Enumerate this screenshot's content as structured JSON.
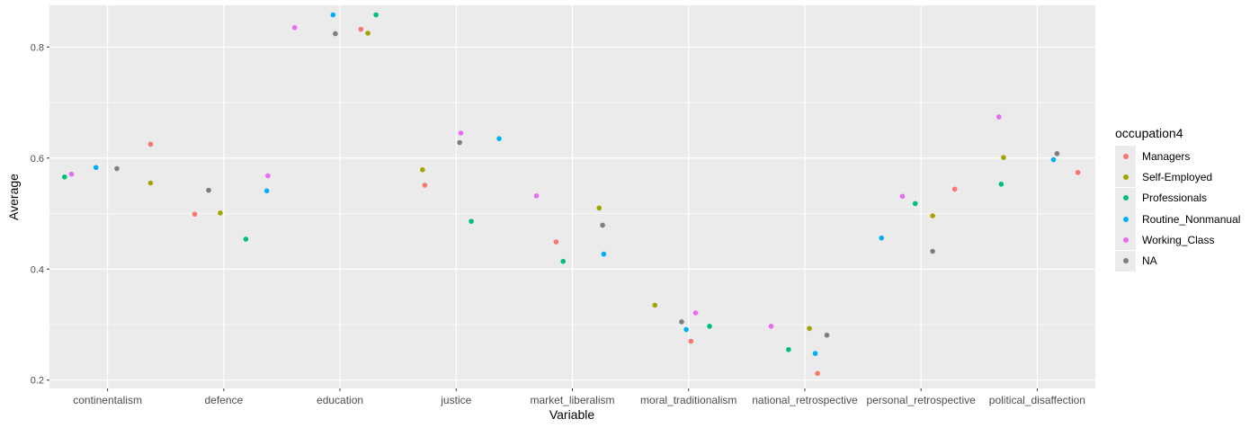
{
  "chart_data": {
    "type": "scatter",
    "title": "",
    "xlabel": "Variable",
    "ylabel": "Average",
    "ylim": [
      0.185,
      0.875
    ],
    "yticks": [
      "0.2",
      "0.4",
      "0.6",
      "0.8"
    ],
    "grid": true,
    "legend_position": "right",
    "legend_title": "occupation4",
    "categories": [
      "continentalism",
      "defence",
      "education",
      "justice",
      "market_liberalism",
      "moral_traditionalism",
      "national_retrospective",
      "personal_retrospective",
      "political_disaffection"
    ],
    "series": [
      {
        "name": "Managers",
        "color": "#F8766D",
        "points": [
          {
            "category": "continentalism",
            "offset": 0.37,
            "y": 0.625
          },
          {
            "category": "defence",
            "offset": -0.25,
            "y": 0.499
          },
          {
            "category": "education",
            "offset": 0.18,
            "y": 0.832
          },
          {
            "category": "justice",
            "offset": -0.27,
            "y": 0.551
          },
          {
            "category": "market_liberalism",
            "offset": -0.14,
            "y": 0.449
          },
          {
            "category": "moral_traditionalism",
            "offset": 0.02,
            "y": 0.27
          },
          {
            "category": "national_retrospective",
            "offset": 0.11,
            "y": 0.212
          },
          {
            "category": "personal_retrospective",
            "offset": 0.29,
            "y": 0.544
          },
          {
            "category": "political_disaffection",
            "offset": 0.35,
            "y": 0.574
          }
        ]
      },
      {
        "name": "Self-Employed",
        "color": "#A3A500",
        "points": [
          {
            "category": "continentalism",
            "offset": 0.37,
            "y": 0.555
          },
          {
            "category": "defence",
            "offset": -0.03,
            "y": 0.501
          },
          {
            "category": "education",
            "offset": 0.24,
            "y": 0.825
          },
          {
            "category": "justice",
            "offset": -0.29,
            "y": 0.579
          },
          {
            "category": "market_liberalism",
            "offset": 0.23,
            "y": 0.51
          },
          {
            "category": "moral_traditionalism",
            "offset": -0.29,
            "y": 0.335
          },
          {
            "category": "national_retrospective",
            "offset": 0.04,
            "y": 0.293
          },
          {
            "category": "personal_retrospective",
            "offset": 0.1,
            "y": 0.496
          },
          {
            "category": "political_disaffection",
            "offset": -0.29,
            "y": 0.601
          }
        ]
      },
      {
        "name": "Professionals",
        "color": "#00BF7D",
        "points": [
          {
            "category": "continentalism",
            "offset": -0.37,
            "y": 0.566
          },
          {
            "category": "defence",
            "offset": 0.19,
            "y": 0.454
          },
          {
            "category": "education",
            "offset": 0.31,
            "y": 0.858
          },
          {
            "category": "justice",
            "offset": 0.13,
            "y": 0.486
          },
          {
            "category": "market_liberalism",
            "offset": -0.08,
            "y": 0.414
          },
          {
            "category": "moral_traditionalism",
            "offset": 0.18,
            "y": 0.297
          },
          {
            "category": "national_retrospective",
            "offset": -0.14,
            "y": 0.255
          },
          {
            "category": "personal_retrospective",
            "offset": -0.05,
            "y": 0.518
          },
          {
            "category": "political_disaffection",
            "offset": -0.31,
            "y": 0.553
          }
        ]
      },
      {
        "name": "Routine_Nonmanual",
        "color": "#00B0F6",
        "points": [
          {
            "category": "continentalism",
            "offset": -0.1,
            "y": 0.583
          },
          {
            "category": "defence",
            "offset": 0.37,
            "y": 0.541
          },
          {
            "category": "education",
            "offset": -0.06,
            "y": 0.858
          },
          {
            "category": "justice",
            "offset": 0.37,
            "y": 0.635
          },
          {
            "category": "market_liberalism",
            "offset": 0.27,
            "y": 0.427
          },
          {
            "category": "moral_traditionalism",
            "offset": -0.02,
            "y": 0.291
          },
          {
            "category": "national_retrospective",
            "offset": 0.09,
            "y": 0.248
          },
          {
            "category": "personal_retrospective",
            "offset": -0.34,
            "y": 0.456
          },
          {
            "category": "political_disaffection",
            "offset": 0.14,
            "y": 0.597
          }
        ]
      },
      {
        "name": "Working_Class",
        "color": "#E76BF3",
        "points": [
          {
            "category": "continentalism",
            "offset": -0.31,
            "y": 0.571
          },
          {
            "category": "defence",
            "offset": 0.38,
            "y": 0.568
          },
          {
            "category": "education",
            "offset": -0.39,
            "y": 0.835
          },
          {
            "category": "justice",
            "offset": 0.04,
            "y": 0.645
          },
          {
            "category": "market_liberalism",
            "offset": -0.31,
            "y": 0.532
          },
          {
            "category": "moral_traditionalism",
            "offset": 0.06,
            "y": 0.321
          },
          {
            "category": "national_retrospective",
            "offset": -0.29,
            "y": 0.297
          },
          {
            "category": "personal_retrospective",
            "offset": -0.16,
            "y": 0.531
          },
          {
            "category": "political_disaffection",
            "offset": -0.33,
            "y": 0.674
          }
        ]
      },
      {
        "name": "NA",
        "color": "#7F7F7F",
        "points": [
          {
            "category": "continentalism",
            "offset": 0.08,
            "y": 0.581
          },
          {
            "category": "defence",
            "offset": -0.13,
            "y": 0.542
          },
          {
            "category": "education",
            "offset": -0.04,
            "y": 0.824
          },
          {
            "category": "justice",
            "offset": 0.03,
            "y": 0.628
          },
          {
            "category": "market_liberalism",
            "offset": 0.26,
            "y": 0.479
          },
          {
            "category": "moral_traditionalism",
            "offset": -0.06,
            "y": 0.305
          },
          {
            "category": "national_retrospective",
            "offset": 0.19,
            "y": 0.281
          },
          {
            "category": "personal_retrospective",
            "offset": 0.1,
            "y": 0.432
          },
          {
            "category": "political_disaffection",
            "offset": 0.17,
            "y": 0.608
          }
        ]
      }
    ]
  }
}
